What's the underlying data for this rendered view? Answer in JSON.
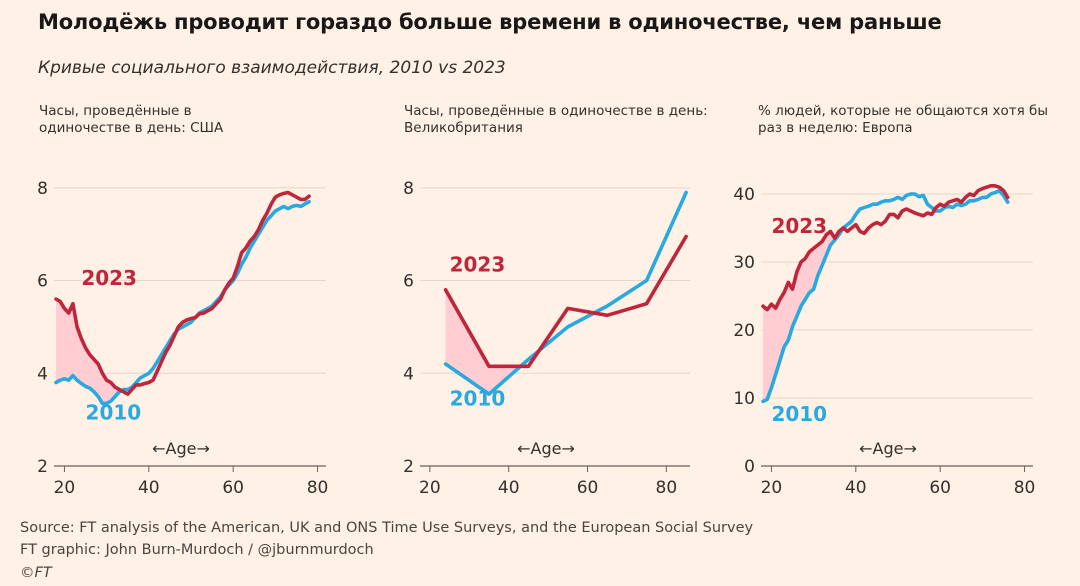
{
  "title": "Молодёжь проводит гораздо больше времени в одиночестве, чем раньше",
  "subtitle": "Кривые социального взаимодействия, 2010 vs 2023",
  "footer": {
    "source": "Source: FT analysis of the American, UK and ONS Time Use Surveys, and the European Social Survey",
    "graphic": "FT graphic: John Burn-Murdoch / @jburnmurdoch",
    "copyright": "©FT"
  },
  "colors": {
    "y2010": "#29a9df",
    "y2023": "#c0263b",
    "fill": "#ffcdd2",
    "grid": "#e3d7cc",
    "axis": "#66605c",
    "text": "#33302e"
  },
  "chart_data": [
    {
      "type": "line",
      "label": "Часы, проведённые в одиночестве в день: США",
      "xlabel": "←Age→",
      "xlim": [
        18,
        82
      ],
      "ylim": [
        2,
        8.6
      ],
      "xticks": [
        20,
        40,
        60,
        80
      ],
      "yticks": [
        2,
        4,
        6,
        8
      ],
      "series": [
        {
          "name": "2010",
          "x": [
            18,
            19,
            20,
            21,
            22,
            23,
            24,
            25,
            26,
            27,
            28,
            29,
            30,
            31,
            32,
            33,
            34,
            35,
            36,
            37,
            38,
            39,
            40,
            41,
            42,
            43,
            44,
            45,
            46,
            47,
            48,
            49,
            50,
            51,
            52,
            53,
            54,
            55,
            56,
            57,
            58,
            59,
            60,
            61,
            62,
            63,
            64,
            65,
            66,
            67,
            68,
            69,
            70,
            71,
            72,
            73,
            74,
            75,
            76,
            77,
            78
          ],
          "y": [
            3.8,
            3.85,
            3.88,
            3.85,
            3.95,
            3.85,
            3.78,
            3.72,
            3.68,
            3.6,
            3.5,
            3.35,
            3.35,
            3.4,
            3.5,
            3.6,
            3.65,
            3.65,
            3.7,
            3.8,
            3.9,
            3.95,
            4.0,
            4.1,
            4.25,
            4.4,
            4.55,
            4.7,
            4.85,
            4.95,
            5.0,
            5.05,
            5.1,
            5.2,
            5.3,
            5.35,
            5.4,
            5.45,
            5.55,
            5.65,
            5.8,
            5.9,
            6.0,
            6.15,
            6.35,
            6.5,
            6.7,
            6.85,
            7.0,
            7.15,
            7.3,
            7.4,
            7.5,
            7.55,
            7.6,
            7.55,
            7.6,
            7.62,
            7.6,
            7.65,
            7.7
          ]
        },
        {
          "name": "2023",
          "x": [
            18,
            19,
            20,
            21,
            22,
            23,
            24,
            25,
            26,
            27,
            28,
            29,
            30,
            31,
            32,
            33,
            34,
            35,
            36,
            37,
            38,
            39,
            40,
            41,
            42,
            43,
            44,
            45,
            46,
            47,
            48,
            49,
            50,
            51,
            52,
            53,
            54,
            55,
            56,
            57,
            58,
            59,
            60,
            61,
            62,
            63,
            64,
            65,
            66,
            67,
            68,
            69,
            70,
            71,
            72,
            73,
            74,
            75,
            76,
            77,
            78
          ],
          "y": [
            5.6,
            5.55,
            5.4,
            5.3,
            5.5,
            5.0,
            4.75,
            4.55,
            4.4,
            4.3,
            4.2,
            4.0,
            3.85,
            3.8,
            3.7,
            3.65,
            3.6,
            3.55,
            3.65,
            3.75,
            3.75,
            3.78,
            3.8,
            3.85,
            4.05,
            4.25,
            4.45,
            4.6,
            4.8,
            5.0,
            5.1,
            5.15,
            5.18,
            5.2,
            5.28,
            5.3,
            5.35,
            5.4,
            5.5,
            5.6,
            5.8,
            5.95,
            6.05,
            6.3,
            6.6,
            6.7,
            6.85,
            6.95,
            7.1,
            7.3,
            7.45,
            7.65,
            7.8,
            7.85,
            7.88,
            7.9,
            7.85,
            7.8,
            7.75,
            7.75,
            7.82
          ]
        }
      ],
      "annotations": [
        {
          "text": "2023",
          "series": "2023",
          "x": 24,
          "y": 5.9
        },
        {
          "text": "2010",
          "series": "2010",
          "x": 25,
          "y": 3.0
        }
      ]
    },
    {
      "type": "line",
      "label": "Часы, проведённые в одиночестве в день: Великобритания",
      "xlabel": "←Age→",
      "xlim": [
        18,
        86
      ],
      "ylim": [
        2,
        8.6
      ],
      "xticks": [
        20,
        40,
        60,
        80
      ],
      "yticks": [
        2,
        4,
        6,
        8
      ],
      "series": [
        {
          "name": "2010",
          "x": [
            24,
            35,
            45,
            55,
            65,
            75,
            85
          ],
          "y": [
            4.2,
            3.55,
            4.3,
            5.0,
            5.45,
            6.0,
            7.9
          ]
        },
        {
          "name": "2023",
          "x": [
            24,
            35,
            45,
            55,
            65,
            75,
            85
          ],
          "y": [
            5.8,
            4.15,
            4.15,
            5.4,
            5.25,
            5.5,
            6.95
          ]
        }
      ],
      "annotations": [
        {
          "text": "2023",
          "series": "2023",
          "x": 25,
          "y": 6.2
        },
        {
          "text": "2010",
          "series": "2010",
          "x": 25,
          "y": 3.3
        }
      ]
    },
    {
      "type": "line",
      "label": "% людей, которые не общаются хотя бы раз в неделю: Европа",
      "xlabel": "←Age→",
      "xlim": [
        18,
        82
      ],
      "ylim": [
        0,
        45
      ],
      "xticks": [
        20,
        40,
        60,
        80
      ],
      "yticks": [
        0,
        10,
        20,
        30,
        40
      ],
      "series": [
        {
          "name": "2010",
          "x": [
            18,
            19,
            20,
            21,
            22,
            23,
            24,
            25,
            26,
            27,
            28,
            29,
            30,
            31,
            32,
            33,
            34,
            35,
            36,
            37,
            38,
            39,
            40,
            41,
            42,
            43,
            44,
            45,
            46,
            47,
            48,
            49,
            50,
            51,
            52,
            53,
            54,
            55,
            56,
            57,
            58,
            59,
            60,
            61,
            62,
            63,
            64,
            65,
            66,
            67,
            68,
            69,
            70,
            71,
            72,
            73,
            74,
            75,
            76
          ],
          "y": [
            9.5,
            9.8,
            11.5,
            13.5,
            15.5,
            17.5,
            18.5,
            20.5,
            22,
            23.5,
            24.5,
            25.5,
            26,
            28,
            29.5,
            31,
            32.5,
            33.2,
            34,
            35,
            35.5,
            36,
            37,
            37.8,
            38,
            38.2,
            38.5,
            38.5,
            38.8,
            39,
            39,
            39.2,
            39.5,
            39.2,
            39.8,
            40,
            40,
            39.6,
            39.8,
            38.5,
            38,
            37.5,
            37.5,
            38,
            38.2,
            38,
            38.5,
            38.3,
            38.5,
            39,
            39,
            39.2,
            39.5,
            39.5,
            40,
            40.2,
            40.5,
            39.8,
            38.8
          ]
        },
        {
          "name": "2023",
          "x": [
            18,
            19,
            20,
            21,
            22,
            23,
            24,
            25,
            26,
            27,
            28,
            29,
            30,
            31,
            32,
            33,
            34,
            35,
            36,
            37,
            38,
            39,
            40,
            41,
            42,
            43,
            44,
            45,
            46,
            47,
            48,
            49,
            50,
            51,
            52,
            53,
            54,
            55,
            56,
            57,
            58,
            59,
            60,
            61,
            62,
            63,
            64,
            65,
            66,
            67,
            68,
            69,
            70,
            71,
            72,
            73,
            74,
            75,
            76
          ],
          "y": [
            23.5,
            23,
            23.8,
            23.2,
            24.5,
            25.5,
            27,
            26,
            28.5,
            30,
            30.5,
            31.5,
            32,
            32.5,
            33,
            34,
            34.5,
            33.5,
            34.5,
            35,
            34.5,
            35,
            35.5,
            34.5,
            34.2,
            35,
            35.5,
            35.8,
            35.5,
            36,
            37,
            37,
            36.5,
            37.5,
            37.8,
            37.5,
            37.2,
            37,
            36.8,
            37.2,
            37,
            38,
            38.5,
            38.2,
            38.8,
            39,
            39.2,
            38.8,
            39.5,
            40,
            39.8,
            40.5,
            40.8,
            41,
            41.2,
            41.2,
            41,
            40.5,
            39.5
          ]
        }
      ],
      "annotations": [
        {
          "text": "2023",
          "series": "2023",
          "x": 20,
          "y": 34.3
        },
        {
          "text": "2010",
          "series": "2010",
          "x": 20,
          "y": 6.6
        }
      ]
    }
  ]
}
